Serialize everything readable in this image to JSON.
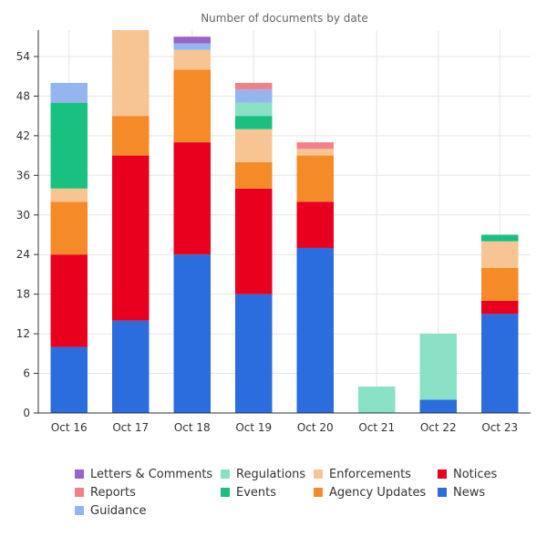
{
  "chart_data": {
    "type": "bar",
    "stacked": true,
    "title": "Number of documents by date",
    "xlabel": "",
    "ylabel": "",
    "categories": [
      "Oct 16",
      "Oct 17",
      "Oct 18",
      "Oct 19",
      "Oct 20",
      "Oct 21",
      "Oct 22",
      "Oct 23"
    ],
    "ylim": [
      0,
      58
    ],
    "yticks": [
      "0",
      "6",
      "12",
      "18",
      "24",
      "30",
      "36",
      "42",
      "48",
      "54"
    ],
    "grid": true,
    "legend_position": "bottom",
    "series": [
      {
        "name": "News",
        "color": "#2b6cde",
        "values": [
          10,
          14,
          24,
          18,
          25,
          0,
          2,
          15
        ]
      },
      {
        "name": "Notices",
        "color": "#e8001e",
        "values": [
          14,
          25,
          17,
          16,
          7,
          0,
          0,
          2
        ]
      },
      {
        "name": "Agency Updates",
        "color": "#f58a28",
        "values": [
          8,
          6,
          11,
          4,
          7,
          0,
          0,
          5
        ]
      },
      {
        "name": "Enforcements",
        "color": "#f7c594",
        "values": [
          2,
          13,
          3,
          5,
          1,
          0,
          0,
          4
        ]
      },
      {
        "name": "Events",
        "color": "#19c07f",
        "values": [
          13,
          0,
          0,
          2,
          0,
          0,
          0,
          1
        ]
      },
      {
        "name": "Regulations",
        "color": "#8ae0c4",
        "values": [
          0,
          0,
          0,
          2,
          0,
          4,
          10,
          0
        ]
      },
      {
        "name": "Guidance",
        "color": "#94b5ef",
        "values": [
          3,
          0,
          1,
          2,
          0,
          0,
          0,
          0
        ]
      },
      {
        "name": "Reports",
        "color": "#f2808a",
        "values": [
          0,
          0,
          0,
          1,
          1,
          0,
          0,
          0
        ]
      },
      {
        "name": "Letters & Comments",
        "color": "#9b63c9",
        "values": [
          0,
          0,
          1,
          0,
          0,
          0,
          0,
          0
        ]
      }
    ]
  },
  "legend": [
    {
      "label": "Letters & Comments",
      "color": "#9b63c9"
    },
    {
      "label": "Regulations",
      "color": "#8ae0c4"
    },
    {
      "label": "Enforcements",
      "color": "#f7c594"
    },
    {
      "label": "Notices",
      "color": "#e8001e"
    },
    {
      "label": "Reports",
      "color": "#f2808a"
    },
    {
      "label": "Events",
      "color": "#19c07f"
    },
    {
      "label": "Agency Updates",
      "color": "#f58a28"
    },
    {
      "label": "News",
      "color": "#2b6cde"
    },
    {
      "label": "Guidance",
      "color": "#94b5ef"
    }
  ]
}
